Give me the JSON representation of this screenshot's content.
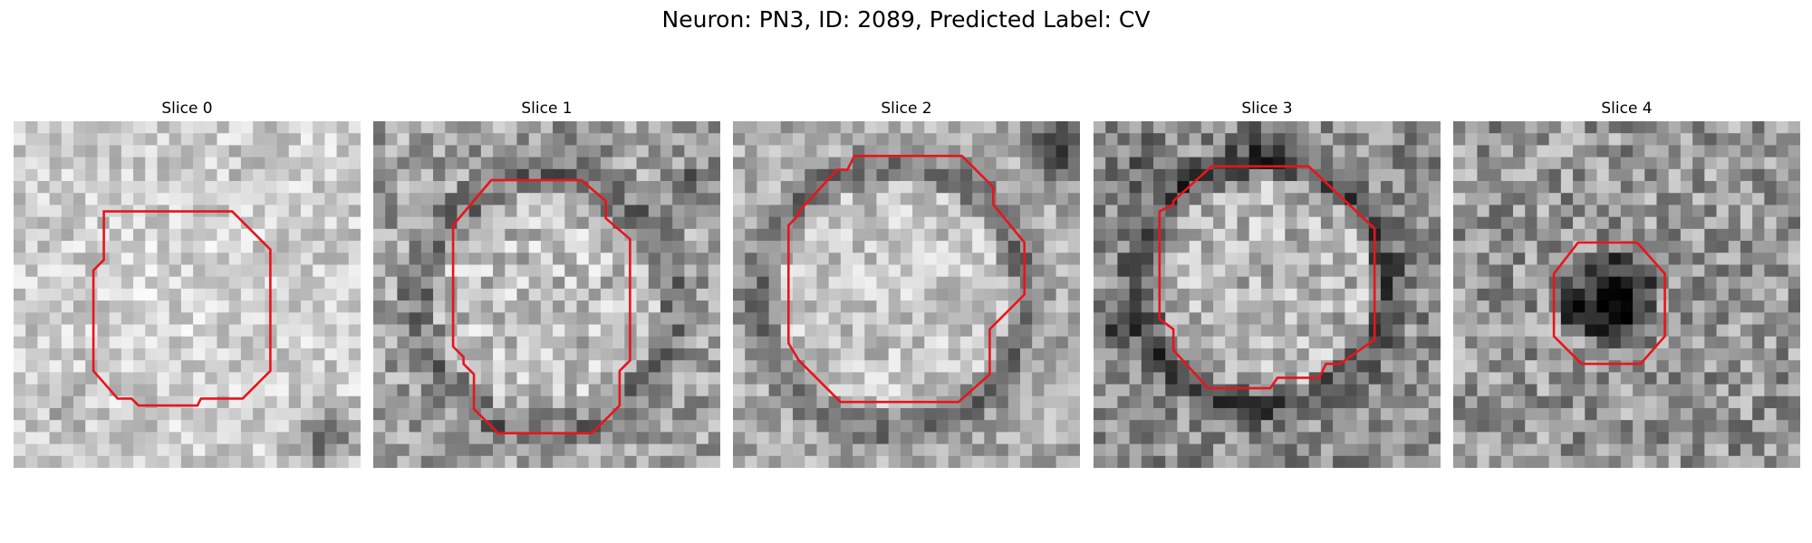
{
  "figure": {
    "title": "Neuron: PN3, ID: 2089, Predicted Label: CV"
  },
  "colors": {
    "contour": "#e8151b",
    "colormap": "grayscale"
  },
  "slices": [
    {
      "label": "Slice 0",
      "brightness": "light",
      "contour_scale": "medium"
    },
    {
      "label": "Slice 1",
      "brightness": "medium",
      "contour_scale": "large"
    },
    {
      "label": "Slice 2",
      "brightness": "medium",
      "contour_scale": "large"
    },
    {
      "label": "Slice 3",
      "brightness": "dark",
      "contour_scale": "large"
    },
    {
      "label": "Slice 4",
      "brightness": "medium",
      "contour_scale": "small"
    }
  ]
}
